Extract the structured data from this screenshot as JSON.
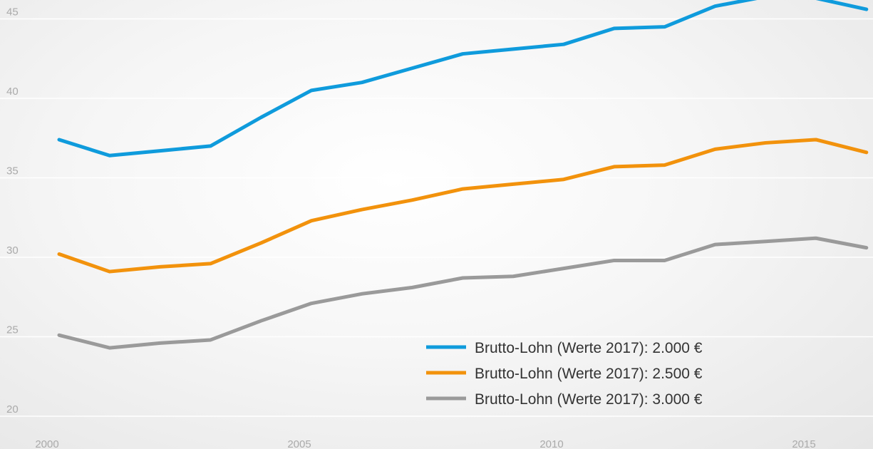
{
  "chart_data": {
    "type": "line",
    "title": "",
    "xlabel": "",
    "ylabel": "",
    "x": [
      2000,
      2001,
      2002,
      2003,
      2004,
      2005,
      2006,
      2007,
      2008,
      2009,
      2010,
      2011,
      2012,
      2013,
      2014,
      2015,
      2016
    ],
    "xticks": [
      "2000",
      "2005",
      "2010",
      "2015"
    ],
    "yticks": [
      "20",
      "25",
      "30",
      "35",
      "40",
      "45"
    ],
    "xlim": [
      2000,
      2016
    ],
    "ylim": [
      20,
      45
    ],
    "grid": "horizontal",
    "legend_position": "bottom-right",
    "series": [
      {
        "name": "Brutto-Lohn (Werte 2017): 2.000 €",
        "color": "#0f9bdc",
        "values": [
          37.4,
          36.4,
          36.7,
          37.0,
          38.8,
          40.5,
          41.0,
          41.9,
          42.8,
          43.1,
          43.4,
          44.4,
          44.5,
          45.8,
          46.4,
          46.3,
          45.6
        ]
      },
      {
        "name": "Brutto-Lohn (Werte 2017): 2.500 €",
        "color": "#f2920c",
        "values": [
          30.2,
          29.1,
          29.4,
          29.6,
          30.9,
          32.3,
          33.0,
          33.6,
          34.3,
          34.6,
          34.9,
          35.7,
          35.8,
          36.8,
          37.2,
          37.4,
          36.6
        ]
      },
      {
        "name": "Brutto-Lohn (Werte 2017): 3.000 €",
        "color": "#9a9a9a",
        "values": [
          25.1,
          24.3,
          24.6,
          24.8,
          26.0,
          27.1,
          27.7,
          28.1,
          28.7,
          28.8,
          29.3,
          29.8,
          29.8,
          30.8,
          31.0,
          31.2,
          30.6
        ]
      }
    ]
  }
}
